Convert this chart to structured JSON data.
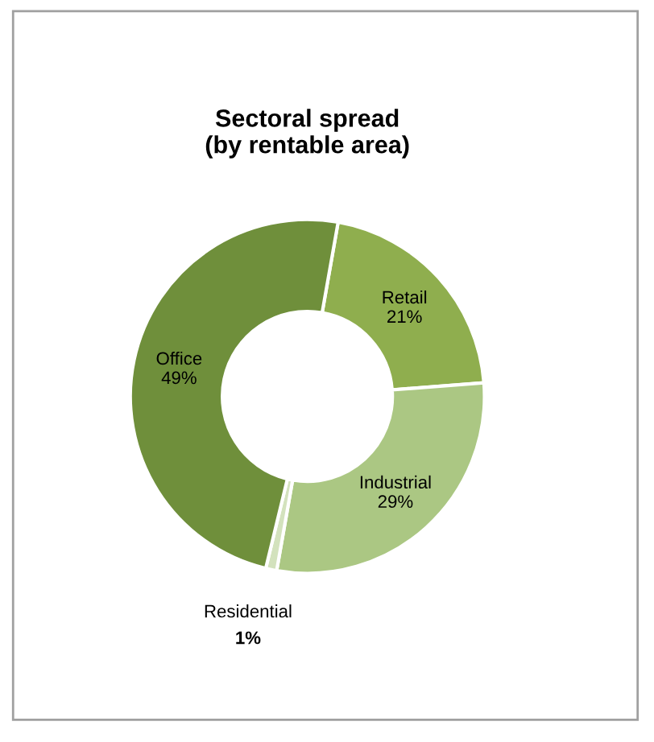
{
  "chart_data": {
    "type": "donut",
    "title": "Sectoral spread\n(by rentable area)",
    "categories": [
      "Retail",
      "Industrial",
      "Residential",
      "Office"
    ],
    "values": [
      21,
      29,
      1,
      49
    ],
    "value_labels": [
      "21%",
      "29%",
      "1%",
      "49%"
    ],
    "colors": [
      "#8fae4e",
      "#abc783",
      "#d3e2bd",
      "#6f8f3b"
    ]
  }
}
